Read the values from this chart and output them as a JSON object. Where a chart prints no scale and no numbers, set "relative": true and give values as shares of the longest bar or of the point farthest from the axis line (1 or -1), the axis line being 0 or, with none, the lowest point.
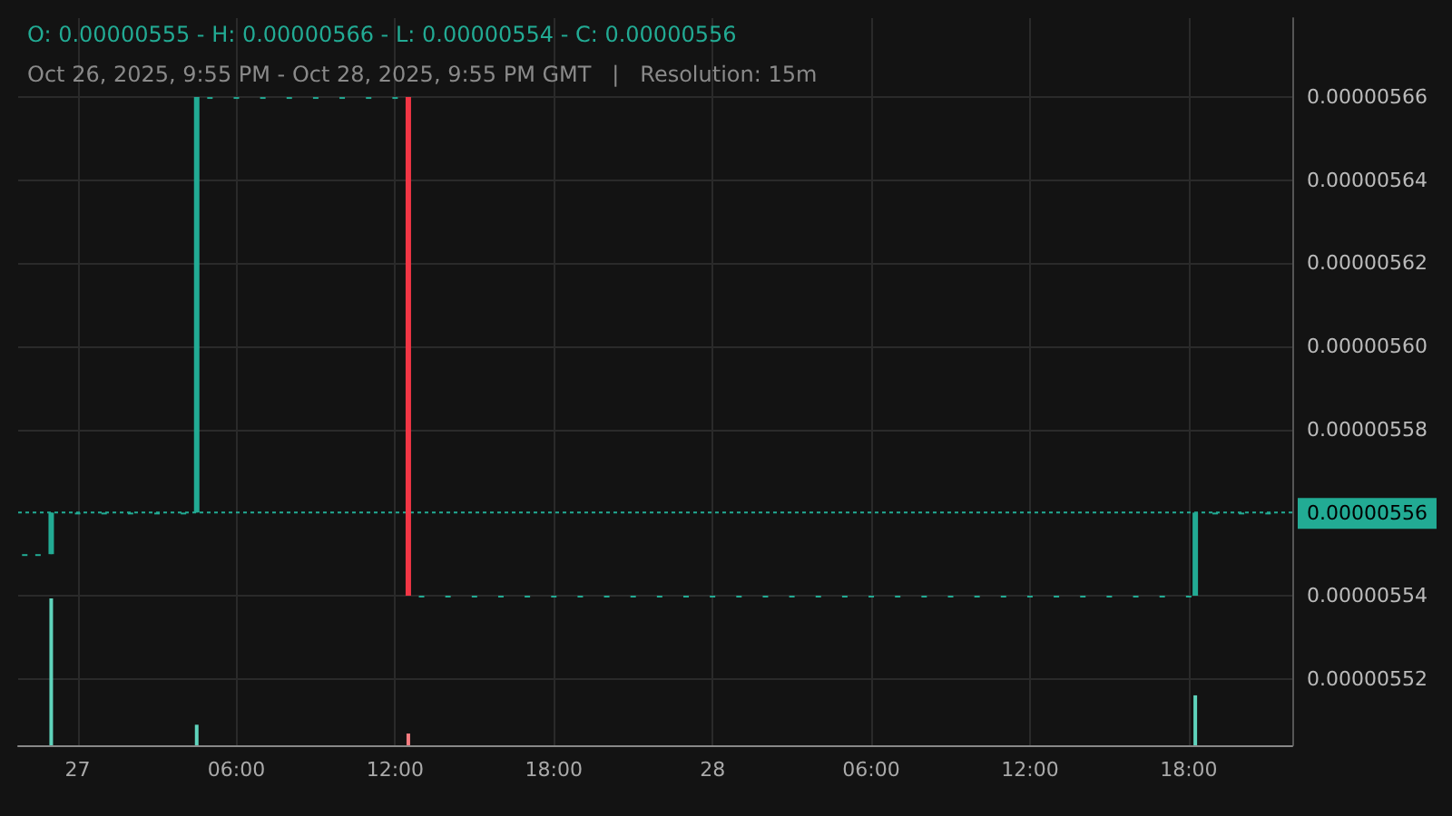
{
  "chart_data": [
    {
      "type": "candlestick",
      "title": "O: 0.00000555 - H: 0.00000566 - L: 0.00000554 - C: 0.00000556",
      "subtitle": "Oct 26, 2025, 9:55 PM - Oct 28, 2025, 9:55 PM GMT   |   Resolution: 15m",
      "x": [
        "2025-10-26T22:00",
        "2025-10-26T22:30",
        "2025-10-26T23:00",
        "2025-10-27T00:00",
        "2025-10-27T01:00",
        "2025-10-27T02:00",
        "2025-10-27T03:00",
        "2025-10-27T04:00",
        "2025-10-27T04:30",
        "2025-10-27T05:00",
        "2025-10-27T06:00",
        "2025-10-27T07:00",
        "2025-10-27T08:00",
        "2025-10-27T09:00",
        "2025-10-27T10:00",
        "2025-10-27T11:00",
        "2025-10-27T12:00",
        "2025-10-27T12:30",
        "2025-10-27T13:00",
        "2025-10-27T14:00",
        "2025-10-27T15:00",
        "2025-10-27T16:00",
        "2025-10-27T17:00",
        "2025-10-27T18:00",
        "2025-10-27T19:00",
        "2025-10-27T20:00",
        "2025-10-27T21:00",
        "2025-10-27T22:00",
        "2025-10-27T23:00",
        "2025-10-28T00:00",
        "2025-10-28T01:00",
        "2025-10-28T02:00",
        "2025-10-28T03:00",
        "2025-10-28T04:00",
        "2025-10-28T05:00",
        "2025-10-28T06:00",
        "2025-10-28T07:00",
        "2025-10-28T08:00",
        "2025-10-28T09:00",
        "2025-10-28T10:00",
        "2025-10-28T11:00",
        "2025-10-28T12:00",
        "2025-10-28T13:00",
        "2025-10-28T14:00",
        "2025-10-28T15:00",
        "2025-10-28T16:00",
        "2025-10-28T17:00",
        "2025-10-28T18:00",
        "2025-10-28T18:15",
        "2025-10-28T19:00",
        "2025-10-28T20:00",
        "2025-10-28T21:00"
      ],
      "ohlc": [
        [
          5.55e-06,
          5.55e-06,
          5.55e-06,
          5.55e-06
        ],
        [
          5.55e-06,
          5.55e-06,
          5.55e-06,
          5.55e-06
        ],
        [
          5.55e-06,
          5.56e-06,
          5.55e-06,
          5.56e-06
        ],
        [
          5.56e-06,
          5.56e-06,
          5.56e-06,
          5.56e-06
        ],
        [
          5.56e-06,
          5.56e-06,
          5.56e-06,
          5.56e-06
        ],
        [
          5.56e-06,
          5.56e-06,
          5.56e-06,
          5.56e-06
        ],
        [
          5.56e-06,
          5.56e-06,
          5.56e-06,
          5.56e-06
        ],
        [
          5.56e-06,
          5.56e-06,
          5.56e-06,
          5.56e-06
        ],
        [
          5.56e-06,
          5.66e-06,
          5.56e-06,
          5.66e-06
        ],
        [
          5.66e-06,
          5.66e-06,
          5.66e-06,
          5.66e-06
        ],
        [
          5.66e-06,
          5.66e-06,
          5.66e-06,
          5.66e-06
        ],
        [
          5.66e-06,
          5.66e-06,
          5.66e-06,
          5.66e-06
        ],
        [
          5.66e-06,
          5.66e-06,
          5.66e-06,
          5.66e-06
        ],
        [
          5.66e-06,
          5.66e-06,
          5.66e-06,
          5.66e-06
        ],
        [
          5.66e-06,
          5.66e-06,
          5.66e-06,
          5.66e-06
        ],
        [
          5.66e-06,
          5.66e-06,
          5.66e-06,
          5.66e-06
        ],
        [
          5.66e-06,
          5.66e-06,
          5.66e-06,
          5.66e-06
        ],
        [
          5.66e-06,
          5.66e-06,
          5.54e-06,
          5.54e-06
        ],
        [
          5.54e-06,
          5.54e-06,
          5.54e-06,
          5.54e-06
        ],
        [
          5.54e-06,
          5.54e-06,
          5.54e-06,
          5.54e-06
        ],
        [
          5.54e-06,
          5.54e-06,
          5.54e-06,
          5.54e-06
        ],
        [
          5.54e-06,
          5.54e-06,
          5.54e-06,
          5.54e-06
        ],
        [
          5.54e-06,
          5.54e-06,
          5.54e-06,
          5.54e-06
        ],
        [
          5.54e-06,
          5.54e-06,
          5.54e-06,
          5.54e-06
        ],
        [
          5.54e-06,
          5.54e-06,
          5.54e-06,
          5.54e-06
        ],
        [
          5.54e-06,
          5.54e-06,
          5.54e-06,
          5.54e-06
        ],
        [
          5.54e-06,
          5.54e-06,
          5.54e-06,
          5.54e-06
        ],
        [
          5.54e-06,
          5.54e-06,
          5.54e-06,
          5.54e-06
        ],
        [
          5.54e-06,
          5.54e-06,
          5.54e-06,
          5.54e-06
        ],
        [
          5.54e-06,
          5.54e-06,
          5.54e-06,
          5.54e-06
        ],
        [
          5.54e-06,
          5.54e-06,
          5.54e-06,
          5.54e-06
        ],
        [
          5.54e-06,
          5.54e-06,
          5.54e-06,
          5.54e-06
        ],
        [
          5.54e-06,
          5.54e-06,
          5.54e-06,
          5.54e-06
        ],
        [
          5.54e-06,
          5.54e-06,
          5.54e-06,
          5.54e-06
        ],
        [
          5.54e-06,
          5.54e-06,
          5.54e-06,
          5.54e-06
        ],
        [
          5.54e-06,
          5.54e-06,
          5.54e-06,
          5.54e-06
        ],
        [
          5.54e-06,
          5.54e-06,
          5.54e-06,
          5.54e-06
        ],
        [
          5.54e-06,
          5.54e-06,
          5.54e-06,
          5.54e-06
        ],
        [
          5.54e-06,
          5.54e-06,
          5.54e-06,
          5.54e-06
        ],
        [
          5.54e-06,
          5.54e-06,
          5.54e-06,
          5.54e-06
        ],
        [
          5.54e-06,
          5.54e-06,
          5.54e-06,
          5.54e-06
        ],
        [
          5.54e-06,
          5.54e-06,
          5.54e-06,
          5.54e-06
        ],
        [
          5.54e-06,
          5.54e-06,
          5.54e-06,
          5.54e-06
        ],
        [
          5.54e-06,
          5.54e-06,
          5.54e-06,
          5.54e-06
        ],
        [
          5.54e-06,
          5.54e-06,
          5.54e-06,
          5.54e-06
        ],
        [
          5.54e-06,
          5.54e-06,
          5.54e-06,
          5.54e-06
        ],
        [
          5.54e-06,
          5.54e-06,
          5.54e-06,
          5.54e-06
        ],
        [
          5.54e-06,
          5.54e-06,
          5.54e-06,
          5.54e-06
        ],
        [
          5.54e-06,
          5.56e-06,
          5.54e-06,
          5.56e-06
        ],
        [
          5.56e-06,
          5.56e-06,
          5.56e-06,
          5.56e-06
        ],
        [
          5.56e-06,
          5.56e-06,
          5.56e-06,
          5.56e-06
        ],
        [
          5.56e-06,
          5.56e-06,
          5.56e-06,
          5.56e-06
        ]
      ],
      "colors": [
        "#22ab94",
        "#22ab94",
        "#22ab94",
        "#22ab94",
        "#22ab94",
        "#22ab94",
        "#22ab94",
        "#22ab94",
        "#22ab94",
        "#22ab94",
        "#22ab94",
        "#22ab94",
        "#22ab94",
        "#22ab94",
        "#22ab94",
        "#22ab94",
        "#22ab94",
        "#f23645",
        "#22ab94",
        "#22ab94",
        "#22ab94",
        "#22ab94",
        "#22ab94",
        "#22ab94",
        "#22ab94",
        "#22ab94",
        "#22ab94",
        "#22ab94",
        "#22ab94",
        "#22ab94",
        "#22ab94",
        "#22ab94",
        "#22ab94",
        "#22ab94",
        "#22ab94",
        "#22ab94",
        "#22ab94",
        "#22ab94",
        "#22ab94",
        "#22ab94",
        "#22ab94",
        "#22ab94",
        "#22ab94",
        "#22ab94",
        "#22ab94",
        "#22ab94",
        "#22ab94",
        "#22ab94",
        "#22ab94",
        "#22ab94",
        "#22ab94",
        "#22ab94"
      ],
      "xlim": [
        "2025-10-26T21:45",
        "2025-10-28T21:55"
      ],
      "xticks": [
        {
          "value": "2025-10-27T00:00",
          "label": "27"
        },
        {
          "value": "2025-10-27T06:00",
          "label": "06:00"
        },
        {
          "value": "2025-10-27T12:00",
          "label": "12:00"
        },
        {
          "value": "2025-10-27T18:00",
          "label": "18:00"
        },
        {
          "value": "2025-10-28T00:00",
          "label": "28"
        },
        {
          "value": "2025-10-28T06:00",
          "label": "06:00"
        },
        {
          "value": "2025-10-28T12:00",
          "label": "12:00"
        },
        {
          "value": "2025-10-28T18:00",
          "label": "18:00"
        }
      ],
      "ylim": [
        5.504e-06,
        5.679e-06
      ],
      "yticks": [
        {
          "value": 5.52e-06,
          "label": "0.00000552"
        },
        {
          "value": 5.54e-06,
          "label": "0.00000554"
        },
        {
          "value": 5.58e-06,
          "label": "0.00000558"
        },
        {
          "value": 5.6e-06,
          "label": "0.00000560"
        },
        {
          "value": 5.62e-06,
          "label": "0.00000562"
        },
        {
          "value": 5.64e-06,
          "label": "0.00000564"
        },
        {
          "value": 5.66e-06,
          "label": "0.00000566"
        }
      ],
      "ref_lines": [
        {
          "axis": "y",
          "value": 5.56e-06,
          "label": "0.00000556",
          "color": "#22ab94",
          "line_style": "dotted"
        }
      ],
      "grid": true
    },
    {
      "type": "bar",
      "relative": true,
      "x": [
        "2025-10-26T23:00",
        "2025-10-27T04:30",
        "2025-10-27T12:30",
        "2025-10-28T18:15"
      ],
      "values": [
        1,
        0.14,
        0.08,
        0.34
      ],
      "colors": [
        "#5fd3bc",
        "#5fd3bc",
        "#f77c80",
        "#5fd3bc"
      ],
      "xlim": [
        "2025-10-26T21:45",
        "2025-10-28T21:55"
      ]
    }
  ]
}
